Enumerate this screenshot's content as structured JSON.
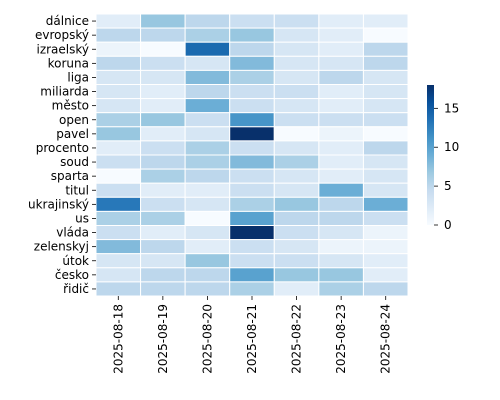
{
  "chart_data": {
    "type": "heatmap",
    "title": "",
    "xlabel": "",
    "ylabel": "",
    "x": [
      "2025-08-18",
      "2025-08-19",
      "2025-08-20",
      "2025-08-21",
      "2025-08-22",
      "2025-08-23",
      "2025-08-24"
    ],
    "y": [
      "dálnice",
      "evropský",
      "izraelský",
      "koruna",
      "liga",
      "miliarda",
      "město",
      "open",
      "pavel",
      "procento",
      "soud",
      "sparta",
      "titul",
      "ukrajinský",
      "us",
      "vláda",
      "zelenskyj",
      "útok",
      "česko",
      "řidič"
    ],
    "values": [
      [
        2,
        7,
        5,
        4,
        4,
        2,
        2
      ],
      [
        5,
        5,
        6,
        7,
        3,
        2,
        0
      ],
      [
        1,
        0,
        14,
        5,
        3,
        2,
        5
      ],
      [
        5,
        4,
        3,
        8,
        3,
        3,
        5
      ],
      [
        3,
        3,
        8,
        6,
        3,
        5,
        3
      ],
      [
        3,
        2,
        5,
        4,
        4,
        2,
        3
      ],
      [
        3,
        2,
        9,
        4,
        3,
        2,
        3
      ],
      [
        6,
        7,
        4,
        11,
        4,
        4,
        4
      ],
      [
        7,
        2,
        3,
        18,
        0,
        1,
        0
      ],
      [
        2,
        4,
        6,
        4,
        3,
        2,
        5
      ],
      [
        4,
        5,
        6,
        8,
        6,
        2,
        3
      ],
      [
        0,
        6,
        5,
        4,
        3,
        2,
        3
      ],
      [
        4,
        2,
        2,
        4,
        3,
        9,
        3
      ],
      [
        13,
        4,
        3,
        6,
        7,
        5,
        9
      ],
      [
        6,
        6,
        0,
        10,
        5,
        5,
        4
      ],
      [
        4,
        2,
        3,
        18,
        4,
        3,
        1
      ],
      [
        8,
        5,
        2,
        4,
        3,
        1,
        1
      ],
      [
        3,
        3,
        7,
        4,
        4,
        3,
        2
      ],
      [
        3,
        5,
        5,
        10,
        7,
        7,
        2
      ],
      [
        5,
        5,
        5,
        6,
        2,
        6,
        5
      ]
    ],
    "colorbar": {
      "range": [
        0,
        18
      ],
      "ticks": [
        0,
        5,
        10,
        15
      ],
      "colormap": "Blues"
    },
    "gridlines": "white"
  }
}
